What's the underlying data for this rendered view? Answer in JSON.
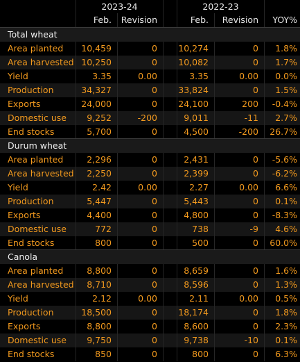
{
  "header": {
    "year1": "2023-24",
    "year2": "2022-23",
    "cols": [
      "Feb.",
      "Revision",
      "Feb.",
      "Revision",
      "YOY%"
    ]
  },
  "sections": [
    {
      "title": "Total wheat",
      "rows": [
        {
          "label": "Area planted",
          "v": [
            "10,459",
            "0",
            "10,274",
            "0",
            "1.8%"
          ]
        },
        {
          "label": "Area harvested",
          "v": [
            "10,250",
            "0",
            "10,082",
            "0",
            "1.7%"
          ]
        },
        {
          "label": "Yield",
          "v": [
            "3.35",
            "0.00",
            "3.35",
            "0.00",
            "0.0%"
          ]
        },
        {
          "label": "Production",
          "v": [
            "34,327",
            "0",
            "33,824",
            "0",
            "1.5%"
          ]
        },
        {
          "label": "Exports",
          "v": [
            "24,000",
            "0",
            "24,100",
            "200",
            "-0.4%"
          ]
        },
        {
          "label": "Domestic use",
          "v": [
            "9,252",
            "-200",
            "9,011",
            "-11",
            "2.7%"
          ]
        },
        {
          "label": "End stocks",
          "v": [
            "5,700",
            "0",
            "4,500",
            "-200",
            "26.7%"
          ]
        }
      ]
    },
    {
      "title": "Durum wheat",
      "rows": [
        {
          "label": "Area planted",
          "v": [
            "2,296",
            "0",
            "2,431",
            "0",
            "-5.6%"
          ]
        },
        {
          "label": "Area harvested",
          "v": [
            "2,250",
            "0",
            "2,399",
            "0",
            "-6.2%"
          ]
        },
        {
          "label": "Yield",
          "v": [
            "2.42",
            "0.00",
            "2.27",
            "0.00",
            "6.6%"
          ]
        },
        {
          "label": "Production",
          "v": [
            "5,447",
            "0",
            "5,443",
            "0",
            "0.1%"
          ]
        },
        {
          "label": "Exports",
          "v": [
            "4,400",
            "0",
            "4,800",
            "0",
            "-8.3%"
          ]
        },
        {
          "label": "Domestic use",
          "v": [
            "772",
            "0",
            "738",
            "-9",
            "4.6%"
          ]
        },
        {
          "label": "End stocks",
          "v": [
            "800",
            "0",
            "500",
            "0",
            "60.0%"
          ]
        }
      ]
    },
    {
      "title": "Canola",
      "rows": [
        {
          "label": "Area planted",
          "v": [
            "8,800",
            "0",
            "8,659",
            "0",
            "1.6%"
          ]
        },
        {
          "label": "Area harvested",
          "v": [
            "8,710",
            "0",
            "8,596",
            "0",
            "1.3%"
          ]
        },
        {
          "label": "Yield",
          "v": [
            "2.12",
            "0.00",
            "2.11",
            "0.00",
            "0.5%"
          ]
        },
        {
          "label": "Production",
          "v": [
            "18,500",
            "0",
            "18,174",
            "0",
            "1.8%"
          ]
        },
        {
          "label": "Exports",
          "v": [
            "8,800",
            "0",
            "8,600",
            "0",
            "2.3%"
          ]
        },
        {
          "label": "Domestic use",
          "v": [
            "9,750",
            "0",
            "9,738",
            "-10",
            "0.1%"
          ]
        },
        {
          "label": "End stocks",
          "v": [
            "850",
            "0",
            "800",
            "0",
            "6.3%"
          ]
        }
      ]
    }
  ],
  "colors": {
    "value": "#f39a1e",
    "header": "#e8e8e8",
    "background": "#000000"
  }
}
